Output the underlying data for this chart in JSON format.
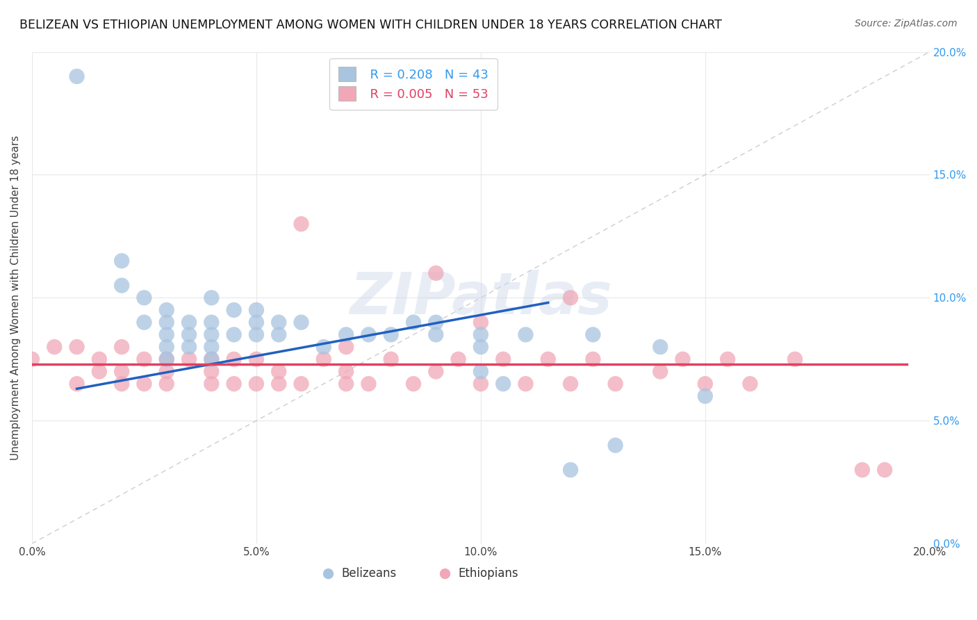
{
  "title": "BELIZEAN VS ETHIOPIAN UNEMPLOYMENT AMONG WOMEN WITH CHILDREN UNDER 18 YEARS CORRELATION CHART",
  "source": "Source: ZipAtlas.com",
  "ylabel": "Unemployment Among Women with Children Under 18 years",
  "watermark": "ZIPatlas",
  "belizean_R": 0.208,
  "belizean_N": 43,
  "ethiopian_R": 0.005,
  "ethiopian_N": 53,
  "xlim": [
    0.0,
    0.2
  ],
  "ylim": [
    0.0,
    0.2
  ],
  "xticks": [
    0.0,
    0.05,
    0.1,
    0.15,
    0.2
  ],
  "yticks": [
    0.0,
    0.05,
    0.1,
    0.15,
    0.2
  ],
  "tick_labels": [
    "0.0%",
    "5.0%",
    "10.0%",
    "15.0%",
    "20.0%"
  ],
  "belizean_color": "#a8c4e0",
  "ethiopian_color": "#f0a8b8",
  "belizean_line_color": "#2060c0",
  "ethiopian_line_color": "#e04060",
  "diagonal_color": "#b8b8b8",
  "grid_color": "#e8e8e8",
  "background_color": "#ffffff",
  "belizean_x": [
    0.01,
    0.02,
    0.02,
    0.025,
    0.025,
    0.03,
    0.03,
    0.03,
    0.03,
    0.03,
    0.035,
    0.035,
    0.035,
    0.04,
    0.04,
    0.04,
    0.04,
    0.04,
    0.045,
    0.045,
    0.05,
    0.05,
    0.05,
    0.055,
    0.055,
    0.06,
    0.065,
    0.07,
    0.075,
    0.08,
    0.085,
    0.09,
    0.09,
    0.1,
    0.1,
    0.1,
    0.105,
    0.11,
    0.12,
    0.125,
    0.13,
    0.14,
    0.15
  ],
  "belizean_y": [
    0.19,
    0.115,
    0.105,
    0.09,
    0.1,
    0.075,
    0.08,
    0.085,
    0.09,
    0.095,
    0.08,
    0.085,
    0.09,
    0.075,
    0.08,
    0.085,
    0.09,
    0.1,
    0.085,
    0.095,
    0.085,
    0.09,
    0.095,
    0.085,
    0.09,
    0.09,
    0.08,
    0.085,
    0.085,
    0.085,
    0.09,
    0.085,
    0.09,
    0.07,
    0.08,
    0.085,
    0.065,
    0.085,
    0.03,
    0.085,
    0.04,
    0.08,
    0.06
  ],
  "ethiopian_x": [
    0.0,
    0.005,
    0.01,
    0.01,
    0.015,
    0.015,
    0.02,
    0.02,
    0.02,
    0.025,
    0.025,
    0.03,
    0.03,
    0.03,
    0.035,
    0.04,
    0.04,
    0.04,
    0.045,
    0.045,
    0.05,
    0.05,
    0.055,
    0.055,
    0.06,
    0.06,
    0.065,
    0.07,
    0.07,
    0.07,
    0.075,
    0.08,
    0.085,
    0.09,
    0.09,
    0.095,
    0.1,
    0.1,
    0.105,
    0.11,
    0.115,
    0.12,
    0.12,
    0.125,
    0.13,
    0.14,
    0.145,
    0.15,
    0.155,
    0.16,
    0.17,
    0.185,
    0.19
  ],
  "ethiopian_y": [
    0.075,
    0.08,
    0.065,
    0.08,
    0.07,
    0.075,
    0.065,
    0.07,
    0.08,
    0.065,
    0.075,
    0.065,
    0.07,
    0.075,
    0.075,
    0.065,
    0.07,
    0.075,
    0.065,
    0.075,
    0.065,
    0.075,
    0.065,
    0.07,
    0.065,
    0.13,
    0.075,
    0.065,
    0.07,
    0.08,
    0.065,
    0.075,
    0.065,
    0.07,
    0.11,
    0.075,
    0.065,
    0.09,
    0.075,
    0.065,
    0.075,
    0.065,
    0.1,
    0.075,
    0.065,
    0.07,
    0.075,
    0.065,
    0.075,
    0.065,
    0.075,
    0.03,
    0.03
  ],
  "belizean_line_x": [
    0.01,
    0.115
  ],
  "belizean_line_y": [
    0.063,
    0.098
  ],
  "ethiopian_line_x": [
    0.0,
    0.195
  ],
  "ethiopian_line_y": [
    0.073,
    0.073
  ]
}
